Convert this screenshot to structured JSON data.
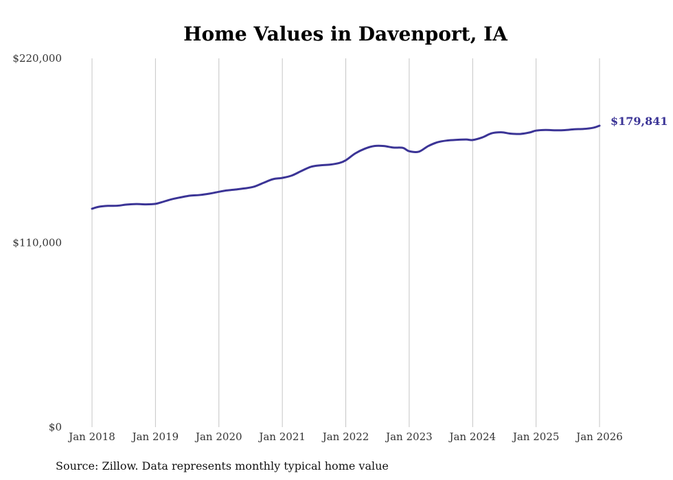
{
  "chart_data": {
    "type": "line",
    "title": "Home Values in Davenport, IA",
    "xlabel": "",
    "ylabel": "",
    "ylim": [
      0,
      220000
    ],
    "yticks": [
      {
        "value": 0,
        "label": "$0"
      },
      {
        "value": 110000,
        "label": "$110,000"
      },
      {
        "value": 220000,
        "label": "$220,000"
      }
    ],
    "xlim": [
      2018.0,
      2026.0
    ],
    "xticks": [
      {
        "value": 2018,
        "label": "Jan 2018"
      },
      {
        "value": 2019,
        "label": "Jan 2019"
      },
      {
        "value": 2020,
        "label": "Jan 2020"
      },
      {
        "value": 2021,
        "label": "Jan 2021"
      },
      {
        "value": 2022,
        "label": "Jan 2022"
      },
      {
        "value": 2023,
        "label": "Jan 2023"
      },
      {
        "value": 2024,
        "label": "Jan 2024"
      },
      {
        "value": 2025,
        "label": "Jan 2025"
      },
      {
        "value": 2026,
        "label": "Jan 2026"
      }
    ],
    "grid": "vertical",
    "series": [
      {
        "name": "Typical home value",
        "color": "#3b3496",
        "end_label": "$179,841",
        "x": [
          2018.0,
          2018.1,
          2018.25,
          2018.4,
          2018.55,
          2018.7,
          2018.85,
          2019.0,
          2019.1,
          2019.25,
          2019.4,
          2019.55,
          2019.7,
          2019.85,
          2020.0,
          2020.1,
          2020.25,
          2020.4,
          2020.55,
          2020.7,
          2020.85,
          2021.0,
          2021.15,
          2021.3,
          2021.45,
          2021.6,
          2021.75,
          2021.9,
          2022.0,
          2022.15,
          2022.3,
          2022.45,
          2022.6,
          2022.75,
          2022.9,
          2023.0,
          2023.15,
          2023.3,
          2023.45,
          2023.6,
          2023.75,
          2023.9,
          2024.0,
          2024.15,
          2024.3,
          2024.45,
          2024.6,
          2024.75,
          2024.9,
          2025.0,
          2025.15,
          2025.3,
          2025.45,
          2025.6,
          2025.75,
          2025.9,
          2026.0
        ],
        "values": [
          130300,
          131400,
          132000,
          132100,
          132800,
          133100,
          132900,
          133200,
          134200,
          135900,
          137100,
          138100,
          138500,
          139300,
          140400,
          141100,
          141700,
          142400,
          143400,
          145700,
          147900,
          148700,
          150100,
          152800,
          155300,
          156200,
          156600,
          157600,
          159200,
          163300,
          166100,
          167700,
          167700,
          166800,
          166600,
          164600,
          164300,
          167700,
          170000,
          171000,
          171400,
          171600,
          171300,
          172800,
          175300,
          175900,
          175100,
          174900,
          175800,
          176900,
          177300,
          177100,
          177200,
          177700,
          177900,
          178600,
          179841
        ]
      }
    ]
  },
  "source_note": "Source: Zillow. Data represents monthly typical home value"
}
